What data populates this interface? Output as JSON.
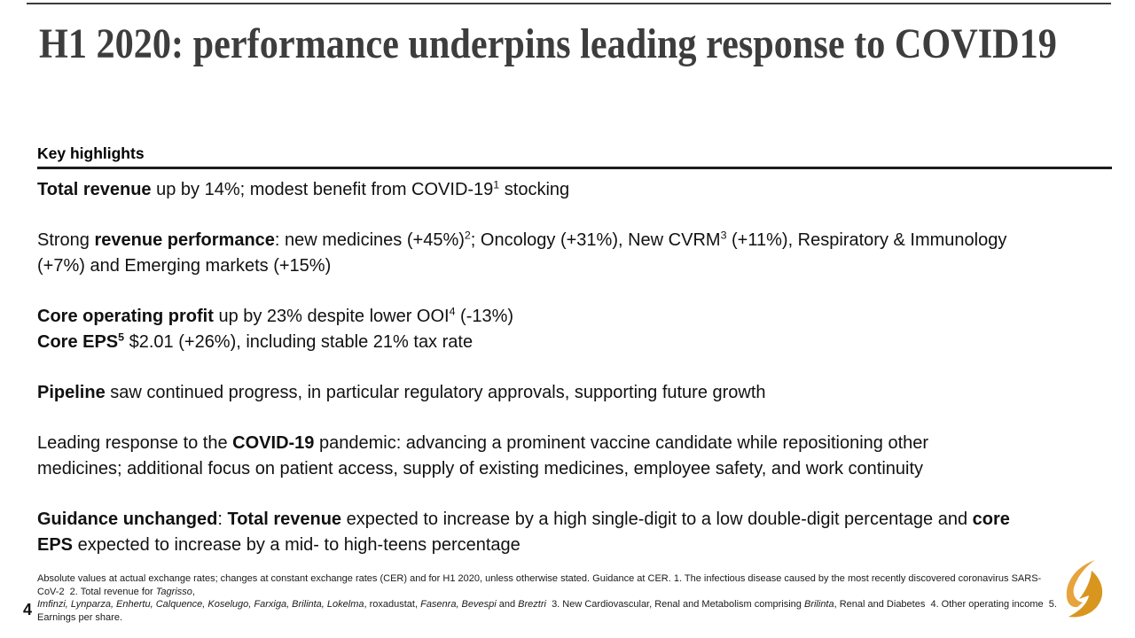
{
  "slide": {
    "title": "H1 2020: performance underpins leading response to COVID19",
    "page_number": "4",
    "colors": {
      "title_text": "#3d3d3d",
      "body_text": "#111111",
      "rule": "#1d1d1d",
      "logo_gold": "#E7A33C",
      "logo_gold_dark": "#D8961F"
    }
  },
  "highlights": {
    "heading": "Key highlights",
    "paragraphs": [
      {
        "lines": [
          [
            {
              "text": "Total revenue",
              "bold": true
            },
            {
              "text": " up by 14%; modest benefit from COVID-19"
            },
            {
              "text": "1",
              "sup": true
            },
            {
              "text": " stocking"
            }
          ]
        ]
      },
      {
        "lines": [
          [
            {
              "text": "Strong "
            },
            {
              "text": "revenue performance",
              "bold": true
            },
            {
              "text": ": new medicines (+45%)"
            },
            {
              "text": "2",
              "sup": true
            },
            {
              "text": "; Oncology (+31%), New CVRM"
            },
            {
              "text": "3",
              "sup": true
            },
            {
              "text": " (+11%), Respiratory & Immunology"
            }
          ],
          [
            {
              "text": "(+7%) and Emerging markets (+15%)"
            }
          ]
        ]
      },
      {
        "lines": [
          [
            {
              "text": "Core operating profit",
              "bold": true
            },
            {
              "text": " up by 23% despite lower OOI"
            },
            {
              "text": "4",
              "sup": true
            },
            {
              "text": " (-13%)"
            }
          ],
          [
            {
              "text": "Core EPS",
              "bold": true
            },
            {
              "text": "5",
              "sup": true,
              "bold": true
            },
            {
              "text": " $2.01 (+26%), including stable 21% tax rate"
            }
          ]
        ]
      },
      {
        "lines": [
          [
            {
              "text": "Pipeline",
              "bold": true
            },
            {
              "text": " saw continued progress, in particular regulatory approvals, supporting future growth"
            }
          ]
        ]
      },
      {
        "lines": [
          [
            {
              "text": "Leading response to the "
            },
            {
              "text": "COVID-19",
              "bold": true
            },
            {
              "text": " pandemic: advancing a prominent vaccine candidate while repositioning other"
            }
          ],
          [
            {
              "text": "medicines; additional focus on patient access, supply of existing medicines, employee safety, and work continuity"
            }
          ]
        ]
      },
      {
        "lines": [
          [
            {
              "text": "Guidance unchanged",
              "bold": true
            },
            {
              "text": ": "
            },
            {
              "text": "Total revenue",
              "bold": true
            },
            {
              "text": " expected to increase by a high single-digit to a low double-digit percentage and "
            },
            {
              "text": "core",
              "bold": true
            }
          ],
          [
            {
              "text": "EPS",
              "bold": true
            },
            {
              "text": " expected to increase by a mid- to high-teens percentage"
            }
          ]
        ]
      }
    ]
  },
  "footnote": {
    "lines": [
      [
        {
          "text": "Absolute values at actual exchange rates; changes at constant exchange rates (CER) and for H1 2020, unless otherwise stated. Guidance at CER. 1. The infectious disease caused by the most recently discovered coronavirus SARS-CoV-2  2. Total revenue for "
        },
        {
          "text": "Tagrisso",
          "italic": true
        },
        {
          "text": ","
        }
      ],
      [
        {
          "text": "Imfinzi, Lynparza, Enhertu, Calquence, Koselugo, Farxiga, Brilinta, Lokelma",
          "italic": true
        },
        {
          "text": ", roxadustat, "
        },
        {
          "text": "Fasenra, Bevespi",
          "italic": true
        },
        {
          "text": " and "
        },
        {
          "text": "Breztri",
          "italic": true
        },
        {
          "text": "  3. New Cardiovascular, Renal and Metabolism comprising "
        },
        {
          "text": "Brilinta",
          "italic": true
        },
        {
          "text": ", Renal and Diabetes  4. Other operating income  5. Earnings per share."
        }
      ]
    ]
  }
}
